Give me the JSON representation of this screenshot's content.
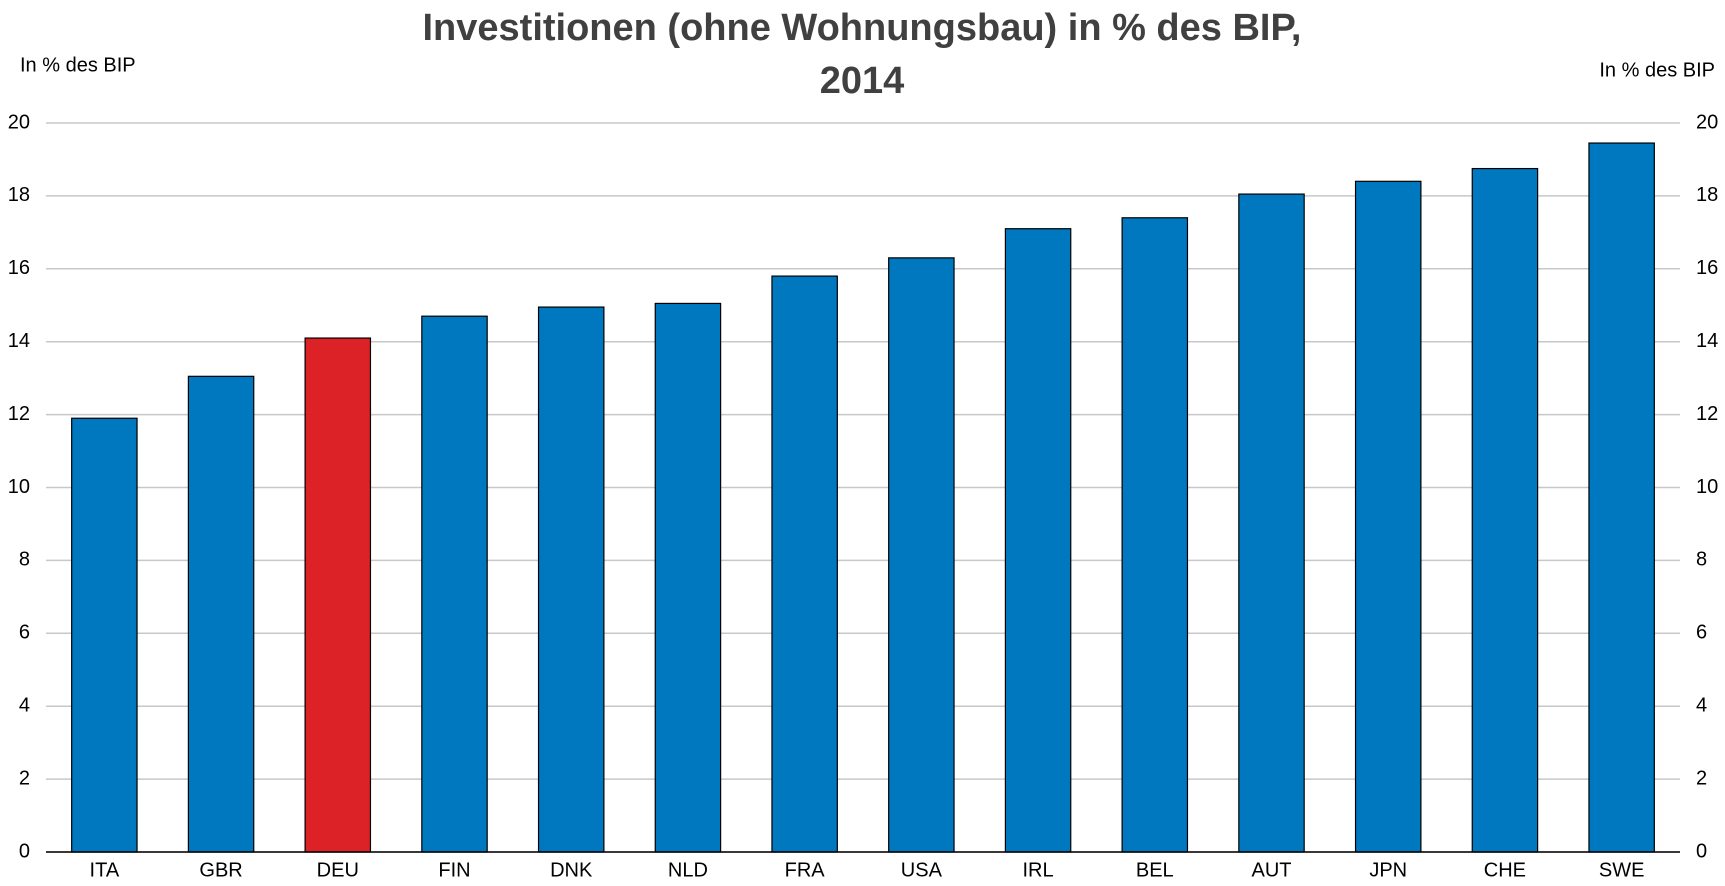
{
  "chart_data": {
    "type": "bar",
    "title": "Investitionen (ohne Wohnungsbau)  in % des BIP, 2014",
    "y_label": "In % des BIP",
    "y2_label": "In % des BIP",
    "categories": [
      "ITA",
      "GBR",
      "DEU",
      "FIN",
      "DNK",
      "NLD",
      "FRA",
      "USA",
      "IRL",
      "BEL",
      "AUT",
      "JPN",
      "CHE",
      "SWE"
    ],
    "values": [
      11.9,
      13.05,
      14.1,
      14.7,
      14.95,
      15.05,
      15.8,
      16.3,
      17.1,
      17.4,
      18.05,
      18.4,
      18.75,
      19.45
    ],
    "colors": [
      "#0078c0",
      "#0078c0",
      "#dc2127",
      "#0078c0",
      "#0078c0",
      "#0078c0",
      "#0078c0",
      "#0078c0",
      "#0078c0",
      "#0078c0",
      "#0078c0",
      "#0078c0",
      "#0078c0",
      "#0078c0"
    ],
    "ylim": [
      0,
      20
    ],
    "yticks": [
      0,
      2,
      4,
      6,
      8,
      10,
      12,
      14,
      16,
      18,
      20
    ],
    "y2lim": [
      0,
      20
    ],
    "y2ticks": [
      0,
      2,
      4,
      6,
      8,
      10,
      12,
      14,
      16,
      18,
      20
    ],
    "grid": true
  }
}
